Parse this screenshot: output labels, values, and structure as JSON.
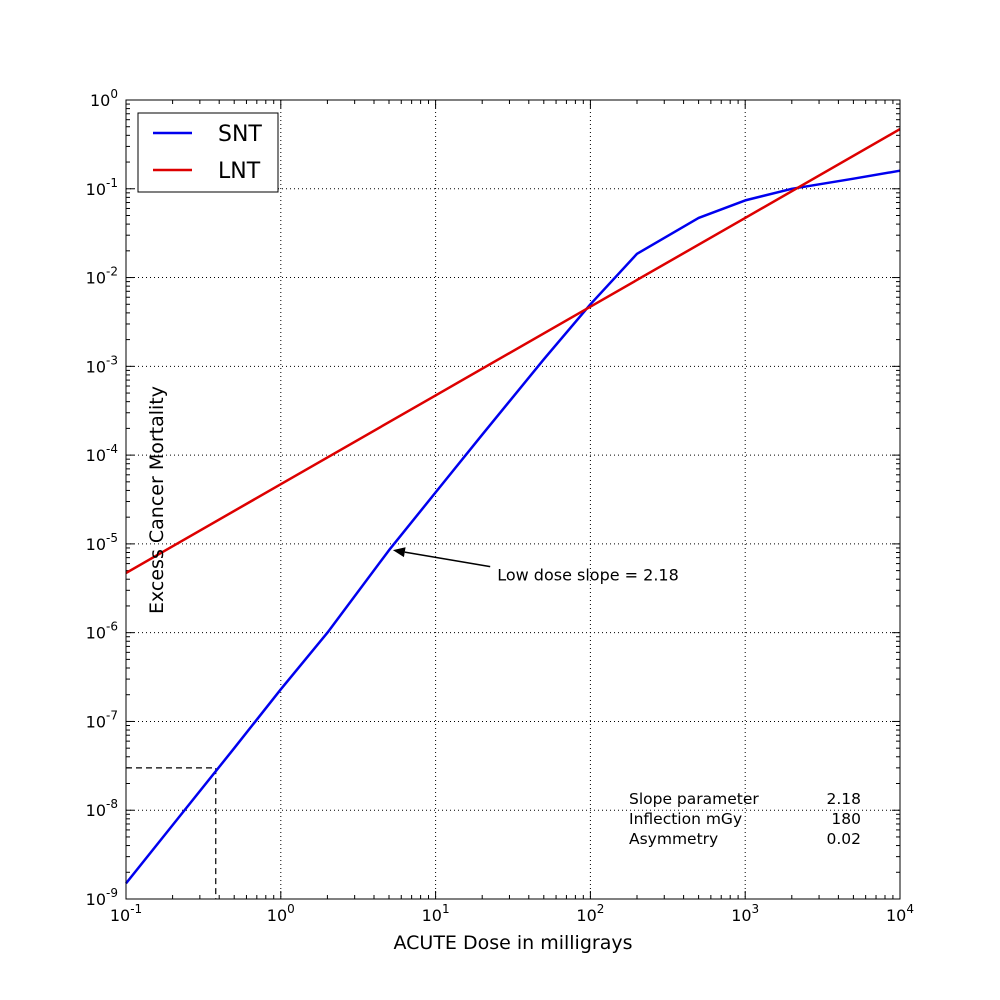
{
  "chart_data": {
    "type": "line",
    "xlabel": "ACUTE Dose in milligrays",
    "ylabel": "Excess Cancer Mortality",
    "xscale": "log",
    "yscale": "log",
    "xlim": [
      0.1,
      10000
    ],
    "ylim": [
      1e-09,
      1
    ],
    "grid": true,
    "legend_position": "top-left",
    "x_ticks": [
      {
        "value": 0.1,
        "base": "10",
        "exp": "-1"
      },
      {
        "value": 1,
        "base": "10",
        "exp": "0"
      },
      {
        "value": 10,
        "base": "10",
        "exp": "1"
      },
      {
        "value": 100,
        "base": "10",
        "exp": "2"
      },
      {
        "value": 1000,
        "base": "10",
        "exp": "3"
      },
      {
        "value": 10000,
        "base": "10",
        "exp": "4"
      }
    ],
    "y_ticks": [
      {
        "value": 1e-09,
        "base": "10",
        "exp": "-9"
      },
      {
        "value": 1e-08,
        "base": "10",
        "exp": "-8"
      },
      {
        "value": 1e-07,
        "base": "10",
        "exp": "-7"
      },
      {
        "value": 1e-06,
        "base": "10",
        "exp": "-6"
      },
      {
        "value": 1e-05,
        "base": "10",
        "exp": "-5"
      },
      {
        "value": 0.0001,
        "base": "10",
        "exp": "-4"
      },
      {
        "value": 0.001,
        "base": "10",
        "exp": "-3"
      },
      {
        "value": 0.01,
        "base": "10",
        "exp": "-2"
      },
      {
        "value": 0.1,
        "base": "10",
        "exp": "-1"
      },
      {
        "value": 1,
        "base": "10",
        "exp": "0"
      }
    ],
    "series": [
      {
        "name": "SNT",
        "color": "#0000ee",
        "x": [
          0.1,
          0.2,
          0.5,
          1,
          2,
          5,
          10,
          20,
          50,
          100,
          200,
          500,
          1000,
          2000,
          5000,
          10000
        ],
        "y": [
          1.5e-09,
          6.8e-09,
          5e-08,
          2.3e-07,
          1e-06,
          8.5e-06,
          3.8e-05,
          0.00017,
          0.0012,
          0.005,
          0.0185,
          0.047,
          0.074,
          0.1,
          0.13,
          0.16
        ]
      },
      {
        "name": "LNT",
        "color": "#dd0000",
        "x": [
          0.1,
          1,
          10,
          100,
          1000,
          10000
        ],
        "y": [
          4.7e-06,
          4.7e-05,
          0.00047,
          0.0047,
          0.047,
          0.47
        ]
      }
    ],
    "annotation": {
      "text": "Low dose slope = 2.18",
      "point": {
        "x": 5.3,
        "y": 8.5e-06
      },
      "text_at": {
        "x": 25,
        "y": 4.5e-06
      }
    },
    "reference_lines": {
      "x": 0.38,
      "y": 3e-08,
      "style": "dashed"
    },
    "parameter_table": [
      {
        "label": "Slope parameter",
        "value": "2.18"
      },
      {
        "label": "Inflection mGy",
        "value": "180"
      },
      {
        "label": "Asymmetry",
        "value": "0.02"
      }
    ]
  }
}
